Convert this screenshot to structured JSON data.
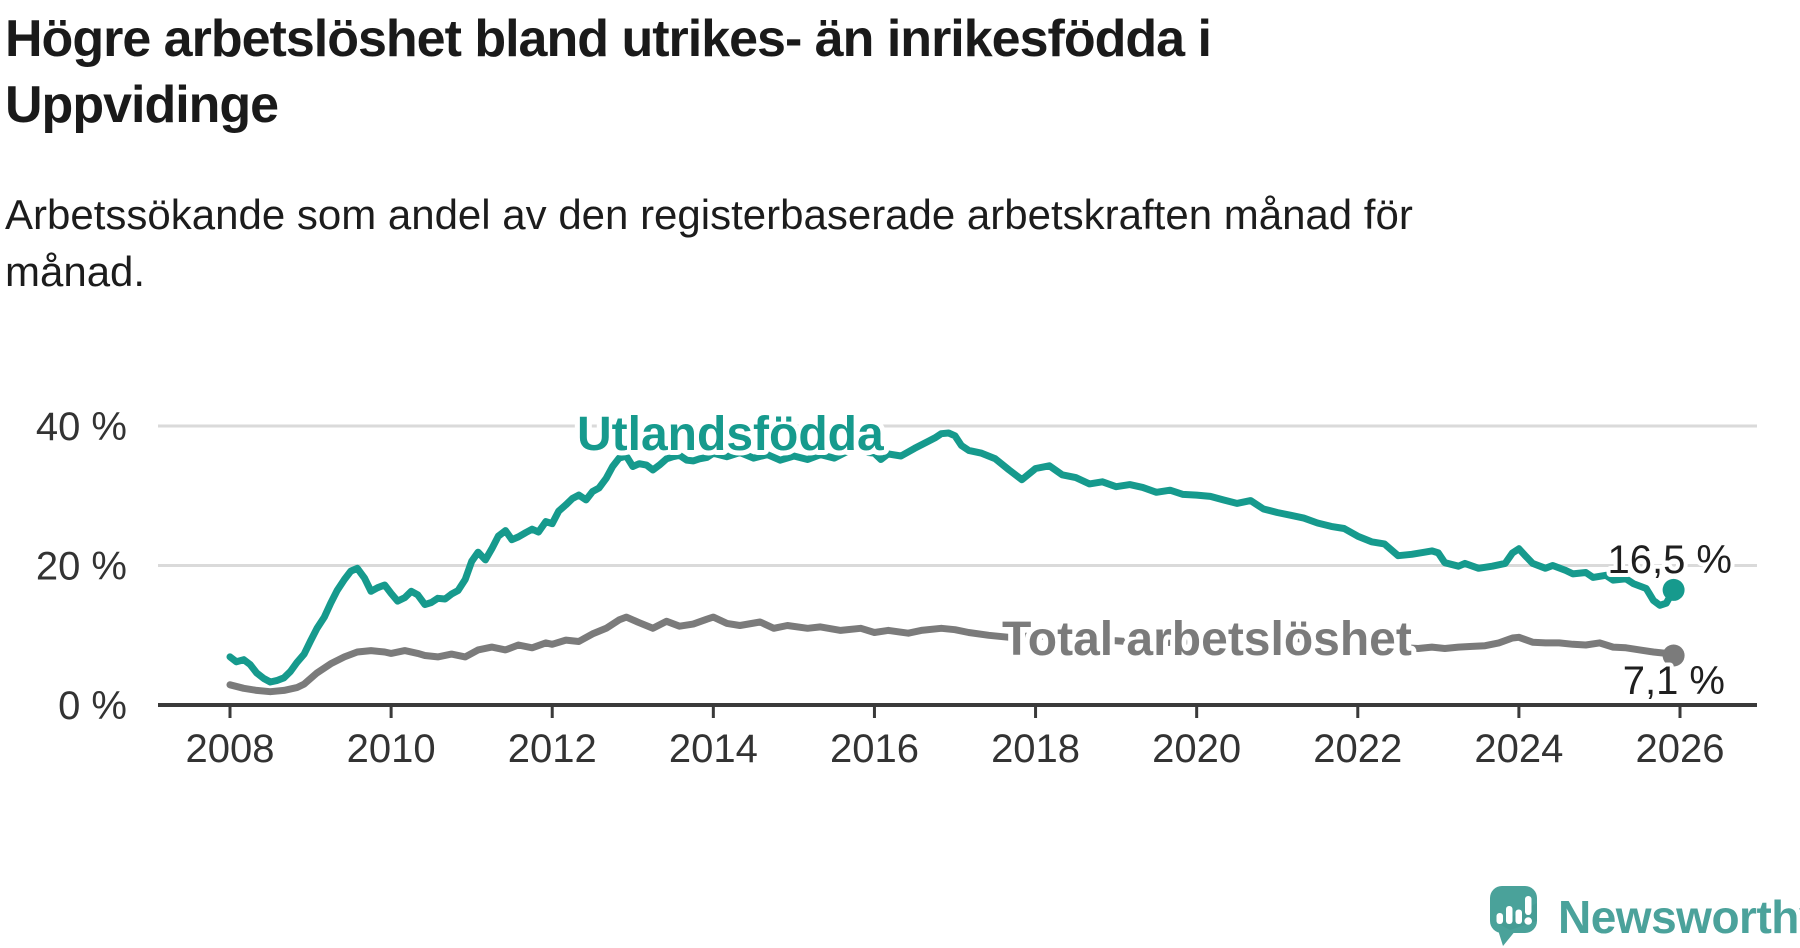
{
  "header": {
    "title_lines": [
      "Högre arbetslöshet bland utrikes- än inrikesfödda i",
      "Uppvidinge"
    ],
    "subtitle_lines": [
      "Arbetssökande som andel av den registerbaserade arbetskraften månad för",
      "månad."
    ]
  },
  "branding": {
    "wordmark": "Newsworthy",
    "logo_color": "#4aa29a",
    "logo_icon": "speech-bubble-bar-chart-icon"
  },
  "chart_data": {
    "type": "line",
    "title": "Högre arbetslöshet bland utrikes- än inrikesfödda i Uppvidinge",
    "subtitle": "Arbetssökande som andel av den registerbaserade arbetskraften månad för månad.",
    "x_axis": {
      "ticks": [
        2008,
        2010,
        2012,
        2014,
        2016,
        2018,
        2020,
        2022,
        2024,
        2026
      ],
      "range": [
        2007.1,
        2026.95
      ]
    },
    "y_axis": {
      "tick_values": [
        0,
        20,
        40
      ],
      "tick_labels": [
        "0 %",
        "20 %",
        "40 %"
      ],
      "gridlines": [
        20,
        40
      ],
      "range": [
        0,
        42
      ],
      "unit": "%"
    },
    "legend_position": "inline-labels",
    "grid": "horizontal-only",
    "series": [
      {
        "name": "Utlandsfödda",
        "color": "#169a8d",
        "end_label": "16,5 %",
        "end_value": 16.5,
        "points": [
          [
            2008.0,
            6.9
          ],
          [
            2008.08,
            6.2
          ],
          [
            2008.17,
            6.5
          ],
          [
            2008.25,
            5.8
          ],
          [
            2008.33,
            4.6
          ],
          [
            2008.42,
            3.8
          ],
          [
            2008.5,
            3.3
          ],
          [
            2008.58,
            3.5
          ],
          [
            2008.67,
            3.9
          ],
          [
            2008.75,
            4.8
          ],
          [
            2008.83,
            6.1
          ],
          [
            2008.92,
            7.3
          ],
          [
            2009.0,
            9.2
          ],
          [
            2009.08,
            11.0
          ],
          [
            2009.17,
            12.6
          ],
          [
            2009.25,
            14.6
          ],
          [
            2009.33,
            16.4
          ],
          [
            2009.42,
            18.0
          ],
          [
            2009.5,
            19.2
          ],
          [
            2009.58,
            19.6
          ],
          [
            2009.67,
            18.2
          ],
          [
            2009.75,
            16.3
          ],
          [
            2009.83,
            16.8
          ],
          [
            2009.92,
            17.2
          ],
          [
            2010.0,
            16.0
          ],
          [
            2010.08,
            14.9
          ],
          [
            2010.17,
            15.4
          ],
          [
            2010.25,
            16.3
          ],
          [
            2010.33,
            15.8
          ],
          [
            2010.42,
            14.4
          ],
          [
            2010.5,
            14.7
          ],
          [
            2010.58,
            15.3
          ],
          [
            2010.67,
            15.2
          ],
          [
            2010.75,
            15.9
          ],
          [
            2010.83,
            16.4
          ],
          [
            2010.92,
            18.0
          ],
          [
            2011.0,
            20.6
          ],
          [
            2011.08,
            21.9
          ],
          [
            2011.17,
            20.8
          ],
          [
            2011.25,
            22.4
          ],
          [
            2011.33,
            24.2
          ],
          [
            2011.42,
            25.0
          ],
          [
            2011.5,
            23.7
          ],
          [
            2011.58,
            24.1
          ],
          [
            2011.67,
            24.7
          ],
          [
            2011.75,
            25.2
          ],
          [
            2011.83,
            24.8
          ],
          [
            2011.92,
            26.3
          ],
          [
            2012.0,
            26.0
          ],
          [
            2012.08,
            27.8
          ],
          [
            2012.17,
            28.7
          ],
          [
            2012.25,
            29.6
          ],
          [
            2012.33,
            30.1
          ],
          [
            2012.42,
            29.4
          ],
          [
            2012.5,
            30.6
          ],
          [
            2012.58,
            31.1
          ],
          [
            2012.67,
            32.5
          ],
          [
            2012.75,
            34.2
          ],
          [
            2012.83,
            35.4
          ],
          [
            2012.92,
            35.7
          ],
          [
            2013.0,
            34.2
          ],
          [
            2013.08,
            34.6
          ],
          [
            2013.17,
            34.4
          ],
          [
            2013.25,
            33.7
          ],
          [
            2013.33,
            34.4
          ],
          [
            2013.42,
            35.3
          ],
          [
            2013.5,
            35.6
          ],
          [
            2013.58,
            35.8
          ],
          [
            2013.67,
            35.1
          ],
          [
            2013.75,
            35.0
          ],
          [
            2013.83,
            35.3
          ],
          [
            2013.92,
            35.5
          ],
          [
            2014.0,
            36.1
          ],
          [
            2014.17,
            35.6
          ],
          [
            2014.33,
            36.2
          ],
          [
            2014.5,
            35.4
          ],
          [
            2014.67,
            35.9
          ],
          [
            2014.83,
            35.1
          ],
          [
            2015.0,
            35.7
          ],
          [
            2015.17,
            35.2
          ],
          [
            2015.33,
            35.9
          ],
          [
            2015.5,
            35.4
          ],
          [
            2015.67,
            36.4
          ],
          [
            2015.83,
            37.1
          ],
          [
            2015.92,
            36.2
          ],
          [
            2016.0,
            36.1
          ],
          [
            2016.08,
            35.2
          ],
          [
            2016.17,
            36.0
          ],
          [
            2016.33,
            35.7
          ],
          [
            2016.5,
            36.8
          ],
          [
            2016.67,
            37.8
          ],
          [
            2016.75,
            38.3
          ],
          [
            2016.83,
            38.9
          ],
          [
            2016.92,
            39.0
          ],
          [
            2017.0,
            38.6
          ],
          [
            2017.08,
            37.2
          ],
          [
            2017.17,
            36.5
          ],
          [
            2017.33,
            36.1
          ],
          [
            2017.5,
            35.3
          ],
          [
            2017.67,
            33.7
          ],
          [
            2017.83,
            32.3
          ],
          [
            2018.0,
            33.9
          ],
          [
            2018.17,
            34.3
          ],
          [
            2018.33,
            33.0
          ],
          [
            2018.5,
            32.6
          ],
          [
            2018.67,
            31.7
          ],
          [
            2018.83,
            32.0
          ],
          [
            2019.0,
            31.3
          ],
          [
            2019.17,
            31.6
          ],
          [
            2019.33,
            31.2
          ],
          [
            2019.5,
            30.5
          ],
          [
            2019.67,
            30.8
          ],
          [
            2019.83,
            30.2
          ],
          [
            2020.0,
            30.1
          ],
          [
            2020.17,
            29.9
          ],
          [
            2020.33,
            29.4
          ],
          [
            2020.5,
            28.9
          ],
          [
            2020.67,
            29.3
          ],
          [
            2020.83,
            28.1
          ],
          [
            2021.0,
            27.6
          ],
          [
            2021.17,
            27.2
          ],
          [
            2021.33,
            26.8
          ],
          [
            2021.5,
            26.1
          ],
          [
            2021.67,
            25.6
          ],
          [
            2021.83,
            25.3
          ],
          [
            2022.0,
            24.2
          ],
          [
            2022.17,
            23.4
          ],
          [
            2022.33,
            23.1
          ],
          [
            2022.5,
            21.4
          ],
          [
            2022.67,
            21.6
          ],
          [
            2022.83,
            21.9
          ],
          [
            2022.92,
            22.1
          ],
          [
            2023.0,
            21.8
          ],
          [
            2023.08,
            20.4
          ],
          [
            2023.25,
            19.9
          ],
          [
            2023.33,
            20.3
          ],
          [
            2023.5,
            19.6
          ],
          [
            2023.67,
            19.9
          ],
          [
            2023.83,
            20.3
          ],
          [
            2023.92,
            21.8
          ],
          [
            2024.0,
            22.4
          ],
          [
            2024.08,
            21.4
          ],
          [
            2024.17,
            20.3
          ],
          [
            2024.33,
            19.6
          ],
          [
            2024.42,
            20.0
          ],
          [
            2024.58,
            19.3
          ],
          [
            2024.67,
            18.8
          ],
          [
            2024.83,
            19.0
          ],
          [
            2024.92,
            18.3
          ],
          [
            2025.08,
            18.6
          ],
          [
            2025.17,
            17.9
          ],
          [
            2025.33,
            18.1
          ],
          [
            2025.42,
            17.4
          ],
          [
            2025.58,
            16.7
          ],
          [
            2025.67,
            15.0
          ],
          [
            2025.75,
            14.3
          ],
          [
            2025.83,
            14.6
          ],
          [
            2025.92,
            16.5
          ]
        ]
      },
      {
        "name": "Total arbetslöshet",
        "color": "#7b7b7b",
        "end_label": "7,1 %",
        "end_value": 7.1,
        "points": [
          [
            2008.0,
            2.9
          ],
          [
            2008.17,
            2.4
          ],
          [
            2008.33,
            2.1
          ],
          [
            2008.5,
            1.9
          ],
          [
            2008.67,
            2.1
          ],
          [
            2008.83,
            2.5
          ],
          [
            2008.92,
            3.0
          ],
          [
            2009.08,
            4.6
          ],
          [
            2009.25,
            5.9
          ],
          [
            2009.42,
            6.9
          ],
          [
            2009.58,
            7.6
          ],
          [
            2009.75,
            7.8
          ],
          [
            2009.92,
            7.6
          ],
          [
            2010.0,
            7.4
          ],
          [
            2010.17,
            7.8
          ],
          [
            2010.33,
            7.4
          ],
          [
            2010.42,
            7.1
          ],
          [
            2010.58,
            6.9
          ],
          [
            2010.75,
            7.3
          ],
          [
            2010.92,
            6.9
          ],
          [
            2011.08,
            7.9
          ],
          [
            2011.25,
            8.3
          ],
          [
            2011.42,
            7.9
          ],
          [
            2011.58,
            8.6
          ],
          [
            2011.75,
            8.2
          ],
          [
            2011.92,
            8.9
          ],
          [
            2012.0,
            8.7
          ],
          [
            2012.17,
            9.3
          ],
          [
            2012.33,
            9.1
          ],
          [
            2012.5,
            10.2
          ],
          [
            2012.67,
            11.0
          ],
          [
            2012.83,
            12.2
          ],
          [
            2012.92,
            12.6
          ],
          [
            2013.08,
            11.8
          ],
          [
            2013.25,
            11.0
          ],
          [
            2013.42,
            12.0
          ],
          [
            2013.58,
            11.3
          ],
          [
            2013.75,
            11.6
          ],
          [
            2013.92,
            12.3
          ],
          [
            2014.0,
            12.6
          ],
          [
            2014.17,
            11.7
          ],
          [
            2014.33,
            11.4
          ],
          [
            2014.58,
            11.9
          ],
          [
            2014.75,
            11.0
          ],
          [
            2014.92,
            11.4
          ],
          [
            2015.17,
            11.0
          ],
          [
            2015.33,
            11.2
          ],
          [
            2015.58,
            10.7
          ],
          [
            2015.83,
            11.0
          ],
          [
            2016.0,
            10.4
          ],
          [
            2016.17,
            10.7
          ],
          [
            2016.42,
            10.3
          ],
          [
            2016.58,
            10.7
          ],
          [
            2016.83,
            11.0
          ],
          [
            2017.0,
            10.8
          ],
          [
            2017.17,
            10.4
          ],
          [
            2017.42,
            10.0
          ],
          [
            2017.67,
            9.7
          ],
          [
            2017.83,
            9.8
          ],
          [
            2018.0,
            10.0
          ],
          [
            2018.25,
            9.7
          ],
          [
            2018.5,
            9.5
          ],
          [
            2018.75,
            9.3
          ],
          [
            2019.0,
            9.2
          ],
          [
            2019.25,
            9.0
          ],
          [
            2019.5,
            8.9
          ],
          [
            2019.75,
            9.0
          ],
          [
            2020.0,
            9.2
          ],
          [
            2020.25,
            9.9
          ],
          [
            2020.5,
            10.2
          ],
          [
            2020.75,
            10.0
          ],
          [
            2021.0,
            9.8
          ],
          [
            2021.25,
            9.5
          ],
          [
            2021.5,
            9.2
          ],
          [
            2021.75,
            8.9
          ],
          [
            2022.0,
            8.6
          ],
          [
            2022.25,
            8.3
          ],
          [
            2022.42,
            8.1
          ],
          [
            2022.58,
            8.2
          ],
          [
            2022.75,
            8.1
          ],
          [
            2022.92,
            8.3
          ],
          [
            2023.08,
            8.1
          ],
          [
            2023.25,
            8.3
          ],
          [
            2023.42,
            8.4
          ],
          [
            2023.58,
            8.5
          ],
          [
            2023.75,
            8.9
          ],
          [
            2023.92,
            9.6
          ],
          [
            2024.0,
            9.7
          ],
          [
            2024.17,
            9.0
          ],
          [
            2024.33,
            8.9
          ],
          [
            2024.5,
            8.9
          ],
          [
            2024.67,
            8.7
          ],
          [
            2024.83,
            8.6
          ],
          [
            2025.0,
            8.9
          ],
          [
            2025.17,
            8.3
          ],
          [
            2025.33,
            8.2
          ],
          [
            2025.5,
            7.9
          ],
          [
            2025.67,
            7.6
          ],
          [
            2025.83,
            7.4
          ],
          [
            2025.92,
            7.1
          ]
        ]
      }
    ]
  }
}
